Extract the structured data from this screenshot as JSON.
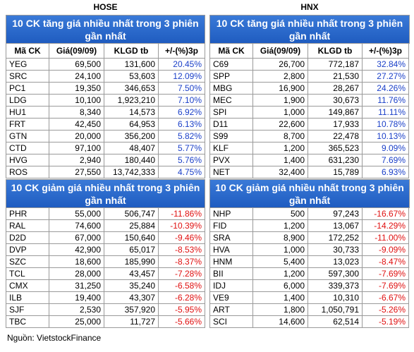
{
  "markets": [
    {
      "title": "HOSE",
      "gain": {
        "title": [
          "10 CK tăng giá nhiều nhất trong 3 phiên",
          "gần nhất"
        ],
        "header": [
          "Mã CK",
          "Giá(09/09)",
          "KLGD tb",
          "+/-(%)3p"
        ],
        "rows": [
          [
            "YEG",
            "69,500",
            "131,600",
            "20.45%"
          ],
          [
            "SRC",
            "24,100",
            "53,603",
            "12.09%"
          ],
          [
            "PC1",
            "19,350",
            "346,653",
            "7.50%"
          ],
          [
            "LDG",
            "10,100",
            "1,923,210",
            "7.10%"
          ],
          [
            "HU1",
            "8,340",
            "14,573",
            "6.92%"
          ],
          [
            "FRT",
            "42,450",
            "64,953",
            "6.13%"
          ],
          [
            "GTN",
            "20,000",
            "356,200",
            "5.82%"
          ],
          [
            "CTD",
            "97,100",
            "48,407",
            "5.77%"
          ],
          [
            "HVG",
            "2,940",
            "180,440",
            "5.76%"
          ],
          [
            "ROS",
            "27,550",
            "13,742,333",
            "4.75%"
          ]
        ]
      },
      "loss": {
        "title": [
          "10 CK giảm giá nhiều nhất trong 3 phiên",
          "gần nhất"
        ],
        "rows": [
          [
            "PHR",
            "55,000",
            "506,747",
            "-11.86%"
          ],
          [
            "RAL",
            "74,600",
            "25,884",
            "-10.39%"
          ],
          [
            "D2D",
            "67,000",
            "150,640",
            "-9.46%"
          ],
          [
            "DVP",
            "42,900",
            "65,017",
            "-8.53%"
          ],
          [
            "SZC",
            "18,600",
            "185,990",
            "-8.37%"
          ],
          [
            "TCL",
            "28,000",
            "43,457",
            "-7.28%"
          ],
          [
            "CMX",
            "31,250",
            "35,240",
            "-6.58%"
          ],
          [
            "ILB",
            "19,400",
            "43,307",
            "-6.28%"
          ],
          [
            "SJF",
            "2,530",
            "357,920",
            "-5.95%"
          ],
          [
            "TBC",
            "25,000",
            "11,727",
            "-5.66%"
          ]
        ]
      }
    },
    {
      "title": "HNX",
      "gain": {
        "title": [
          "10 CK tăng giá nhiều nhất trong 3 phiên",
          "gần nhất"
        ],
        "header": [
          "Mã CK",
          "Giá(09/09)",
          "KLGD tb",
          "+/-(%)3p"
        ],
        "rows": [
          [
            "C69",
            "26,700",
            "772,187",
            "32.84%"
          ],
          [
            "SPP",
            "2,800",
            "21,530",
            "27.27%"
          ],
          [
            "MBG",
            "16,900",
            "28,267",
            "24.26%"
          ],
          [
            "MEC",
            "1,900",
            "30,673",
            "11.76%"
          ],
          [
            "SPI",
            "1,000",
            "149,867",
            "11.11%"
          ],
          [
            "D11",
            "22,600",
            "17,933",
            "10.78%"
          ],
          [
            "S99",
            "8,700",
            "22,478",
            "10.13%"
          ],
          [
            "KLF",
            "1,200",
            "365,523",
            "9.09%"
          ],
          [
            "PVX",
            "1,400",
            "631,230",
            "7.69%"
          ],
          [
            "NET",
            "32,400",
            "15,789",
            "6.93%"
          ]
        ]
      },
      "loss": {
        "title": [
          "10 CK giảm giá nhiều nhất trong 3 phiên",
          "gần nhất"
        ],
        "rows": [
          [
            "NHP",
            "500",
            "97,243",
            "-16.67%"
          ],
          [
            "FID",
            "1,200",
            "13,067",
            "-14.29%"
          ],
          [
            "SRA",
            "8,900",
            "172,252",
            "-11.00%"
          ],
          [
            "HVA",
            "1,000",
            "30,733",
            "-9.09%"
          ],
          [
            "HNM",
            "5,400",
            "13,023",
            "-8.47%"
          ],
          [
            "BII",
            "1,200",
            "597,300",
            "-7.69%"
          ],
          [
            "IDJ",
            "6,000",
            "339,373",
            "-7.69%"
          ],
          [
            "VE9",
            "1,400",
            "10,310",
            "-6.67%"
          ],
          [
            "ART",
            "1,800",
            "1,050,791",
            "-5.26%"
          ],
          [
            "SCI",
            "14,600",
            "62,514",
            "-5.19%"
          ]
        ]
      }
    }
  ],
  "source": "Nguồn: VietstockFinance"
}
